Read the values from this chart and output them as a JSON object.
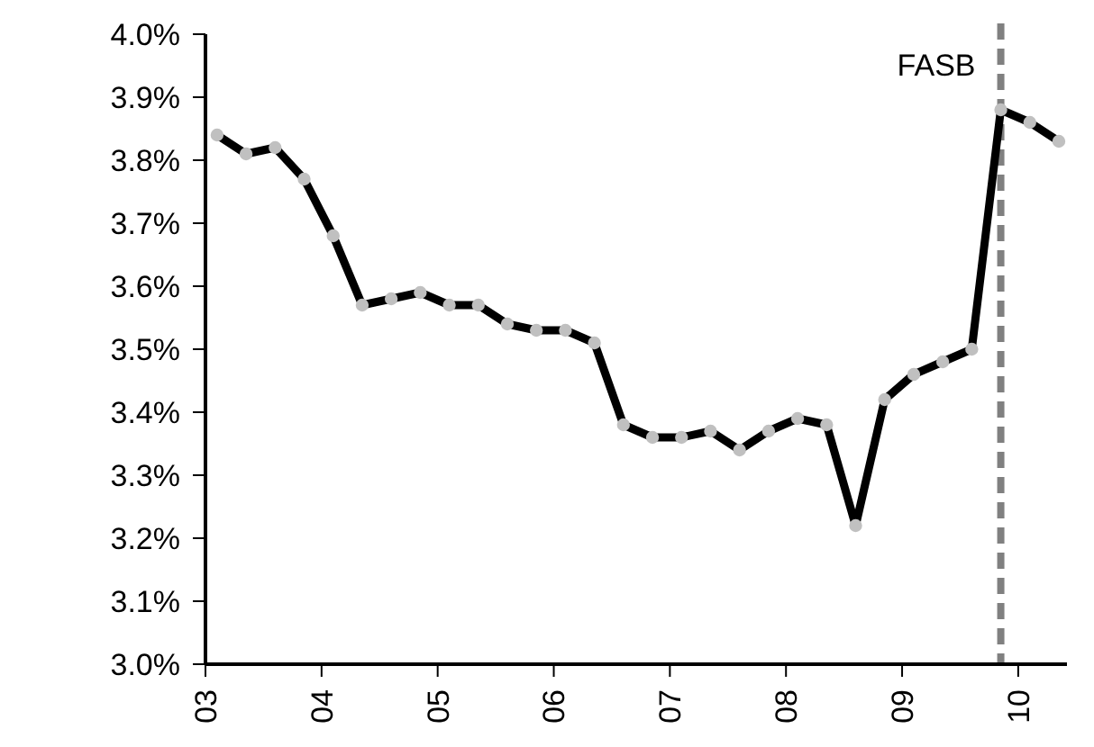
{
  "chart_data": {
    "type": "line",
    "x": [
      2003.1,
      2003.35,
      2003.6,
      2003.85,
      2004.1,
      2004.35,
      2004.6,
      2004.85,
      2005.1,
      2005.35,
      2005.6,
      2005.85,
      2006.1,
      2006.35,
      2006.6,
      2006.85,
      2007.1,
      2007.35,
      2007.6,
      2007.85,
      2008.1,
      2008.35,
      2008.6,
      2008.85,
      2009.1,
      2009.35,
      2009.6,
      2009.85,
      2010.1,
      2010.35
    ],
    "series": [
      {
        "color": "#000000",
        "values": [
          3.84,
          3.81,
          3.82,
          3.77,
          3.68,
          3.57,
          3.58,
          3.59,
          3.57,
          3.57,
          3.54,
          3.53,
          3.53,
          3.51,
          3.38,
          3.36,
          3.36,
          3.37,
          3.34,
          3.37,
          3.39,
          3.38,
          3.22,
          3.42,
          3.46,
          3.48,
          3.5,
          3.88,
          3.86,
          3.83
        ]
      }
    ],
    "xlim": [
      2003,
      2010.42
    ],
    "xticks": [
      {
        "value": 2003,
        "label": "03"
      },
      {
        "value": 2004,
        "label": "04"
      },
      {
        "value": 2005,
        "label": "05"
      },
      {
        "value": 2006,
        "label": "06"
      },
      {
        "value": 2007,
        "label": "07"
      },
      {
        "value": 2008,
        "label": "08"
      },
      {
        "value": 2009,
        "label": "09"
      },
      {
        "value": 2010,
        "label": "10"
      }
    ],
    "ylim": [
      3.0,
      4.0
    ],
    "yticks": [
      {
        "value": 3.0,
        "label": "3.0%"
      },
      {
        "value": 3.1,
        "label": "3.1%"
      },
      {
        "value": 3.2,
        "label": "3.2%"
      },
      {
        "value": 3.3,
        "label": "3.3%"
      },
      {
        "value": 3.4,
        "label": "3.4%"
      },
      {
        "value": 3.5,
        "label": "3.5%"
      },
      {
        "value": 3.6,
        "label": "3.6%"
      },
      {
        "value": 3.7,
        "label": "3.7%"
      },
      {
        "value": 3.8,
        "label": "3.8%"
      },
      {
        "value": 3.9,
        "label": "3.9%"
      },
      {
        "value": 4.0,
        "label": "4.0%"
      }
    ],
    "ref_lines": [
      {
        "axis": "x",
        "value": 2009.85,
        "label": "FASB",
        "color": "#808080",
        "line_style": "dashed"
      }
    ],
    "marker": "circle",
    "line_style": "solid",
    "grid": false
  }
}
